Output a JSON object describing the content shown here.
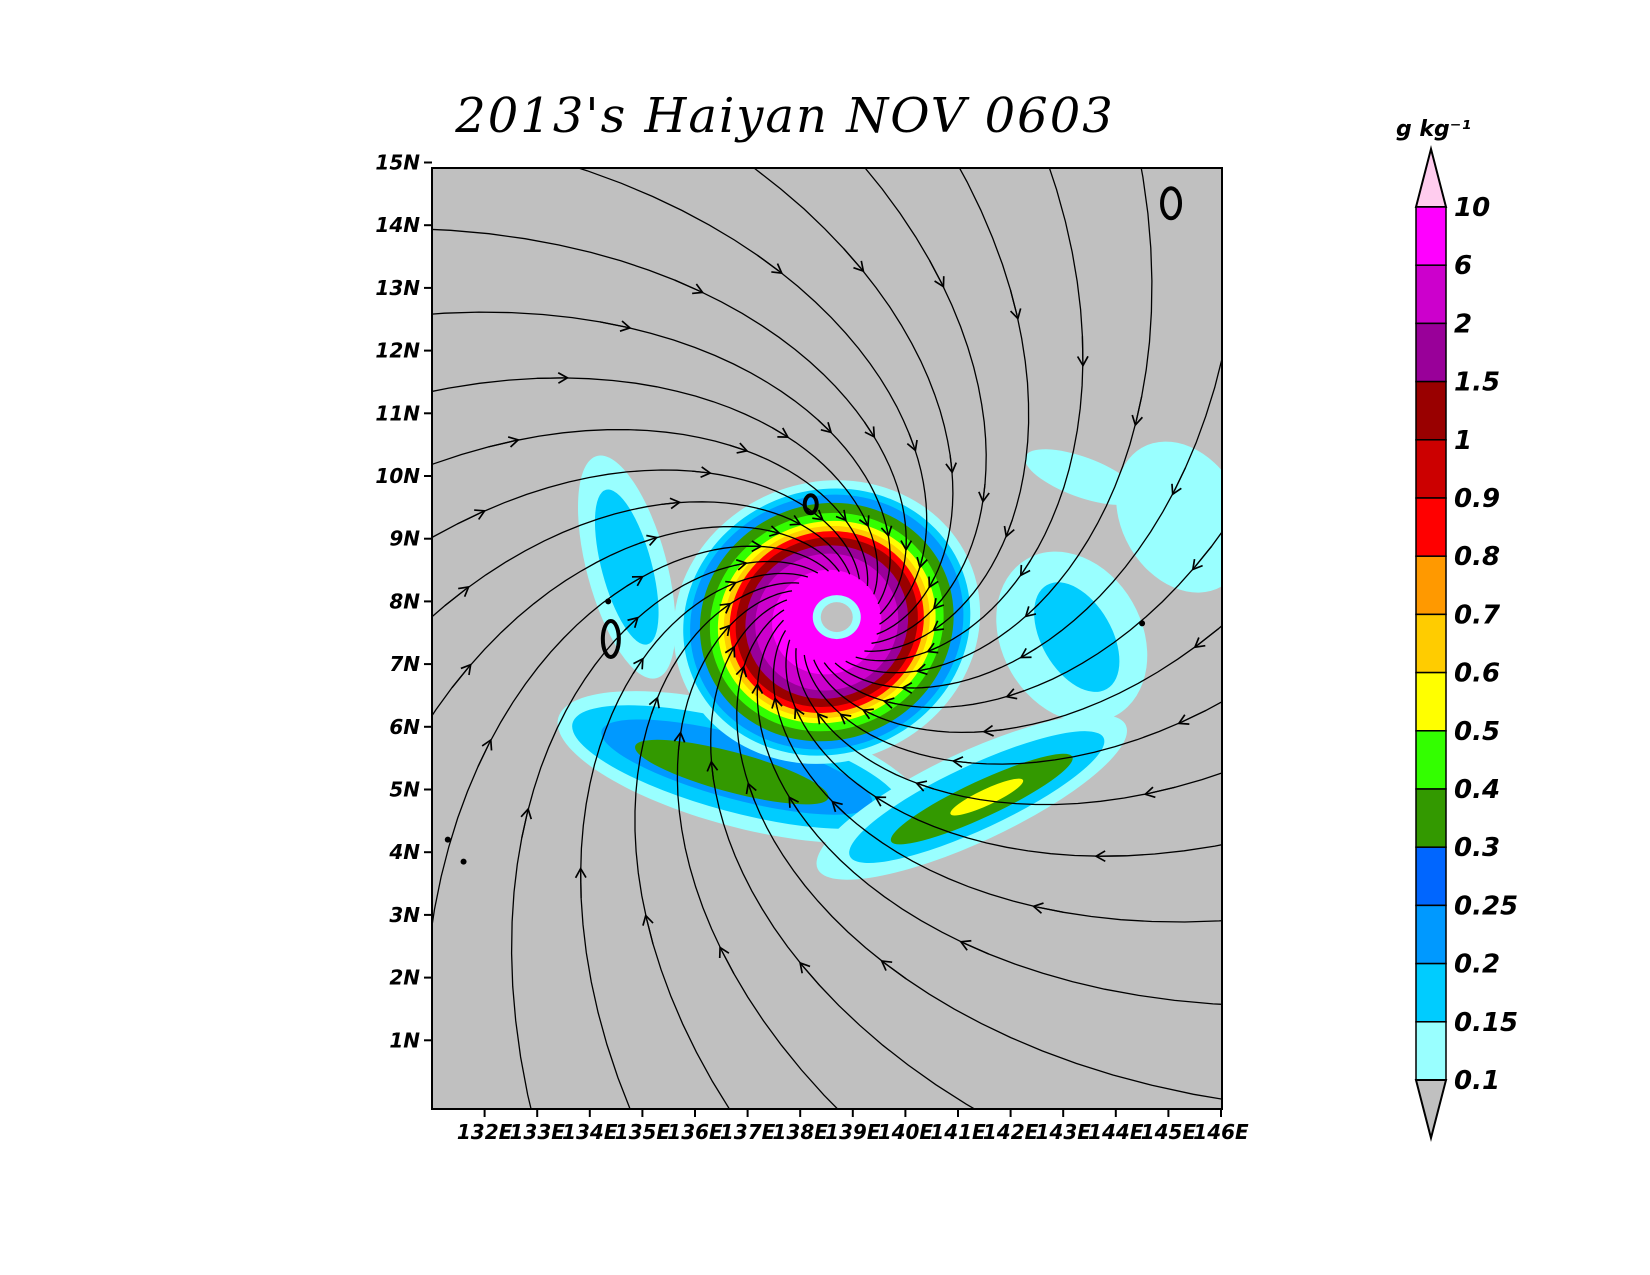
{
  "title": "2013's Haiyan NOV 0603",
  "map": {
    "lon_range": [
      131,
      146
    ],
    "lat_range": [
      0,
      15
    ],
    "data_lat_min": 2,
    "lat_ticks": [
      "1N",
      "2N",
      "3N",
      "4N",
      "5N",
      "6N",
      "7N",
      "8N",
      "9N",
      "10N",
      "11N",
      "12N",
      "13N",
      "14N",
      "15N"
    ],
    "lon_ticks": [
      "132E",
      "133E",
      "134E",
      "135E",
      "136E",
      "137E",
      "138E",
      "139E",
      "140E",
      "141E",
      "142E",
      "143E",
      "144E",
      "145E",
      "146E"
    ],
    "background_color": "#c0c0c0",
    "storm_center": {
      "lon": 138.6,
      "lat": 7.75
    },
    "field": "cloud water / hydrometeor mixing ratio",
    "vectors": "wind streamlines"
  },
  "colorbar": {
    "units": "g kg⁻¹",
    "levels": [
      "0.1",
      "0.15",
      "0.2",
      "0.25",
      "0.3",
      "0.4",
      "0.5",
      "0.6",
      "0.7",
      "0.8",
      "0.9",
      "1",
      "1.5",
      "2",
      "6",
      "10"
    ],
    "colors": [
      "#c0c0c0",
      "#99ffff",
      "#00ccff",
      "#0099ff",
      "#0066ff",
      "#339900",
      "#33ff00",
      "#ffff00",
      "#ffcc00",
      "#ff9900",
      "#ff0000",
      "#cc0000",
      "#990000",
      "#990099",
      "#cc00cc",
      "#ff00ff",
      "#ffccee"
    ]
  }
}
